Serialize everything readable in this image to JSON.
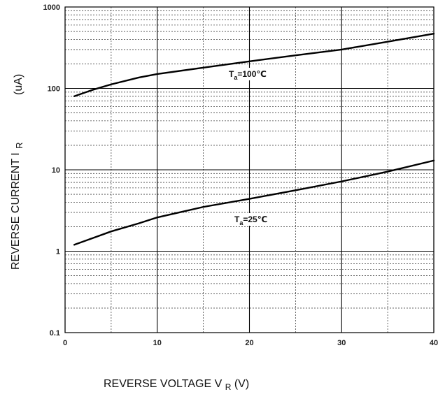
{
  "chart_data": {
    "type": "line",
    "title": "",
    "xlabel": {
      "prefix": "REVERSE VOLTAGE V",
      "sub": "R",
      "suffix": "(V)"
    },
    "ylabel": {
      "prefix": "REVERSE CURRENT  I",
      "sub": "R",
      "units": "(uA)"
    },
    "xlim": [
      0,
      40
    ],
    "ylim": [
      0.1,
      1000
    ],
    "yscale": "log",
    "grid": true,
    "x_tick_labels": [
      "0",
      "10",
      "20",
      "30",
      "40"
    ],
    "y_tick_labels": [
      "0.1",
      "1",
      "10",
      "100",
      "1000"
    ],
    "series": [
      {
        "name": "Ta=100°C",
        "x": [
          1,
          3,
          5,
          8,
          10,
          15,
          20,
          25,
          30,
          35,
          40
        ],
        "y": [
          80,
          96,
          112,
          136,
          150,
          180,
          215,
          255,
          300,
          375,
          470
        ]
      },
      {
        "name": "Ta=25°C",
        "x": [
          1,
          3,
          5,
          8,
          10,
          15,
          20,
          25,
          30,
          35,
          40
        ],
        "y": [
          1.2,
          1.45,
          1.75,
          2.2,
          2.6,
          3.5,
          4.4,
          5.6,
          7.2,
          9.5,
          13
        ]
      }
    ],
    "annotations": [
      {
        "series_index": 0,
        "prefix": "T",
        "sub": "a",
        "suffix": "=100℃"
      },
      {
        "series_index": 1,
        "prefix": "T",
        "sub": "a",
        "suffix": "=25℃"
      }
    ]
  }
}
